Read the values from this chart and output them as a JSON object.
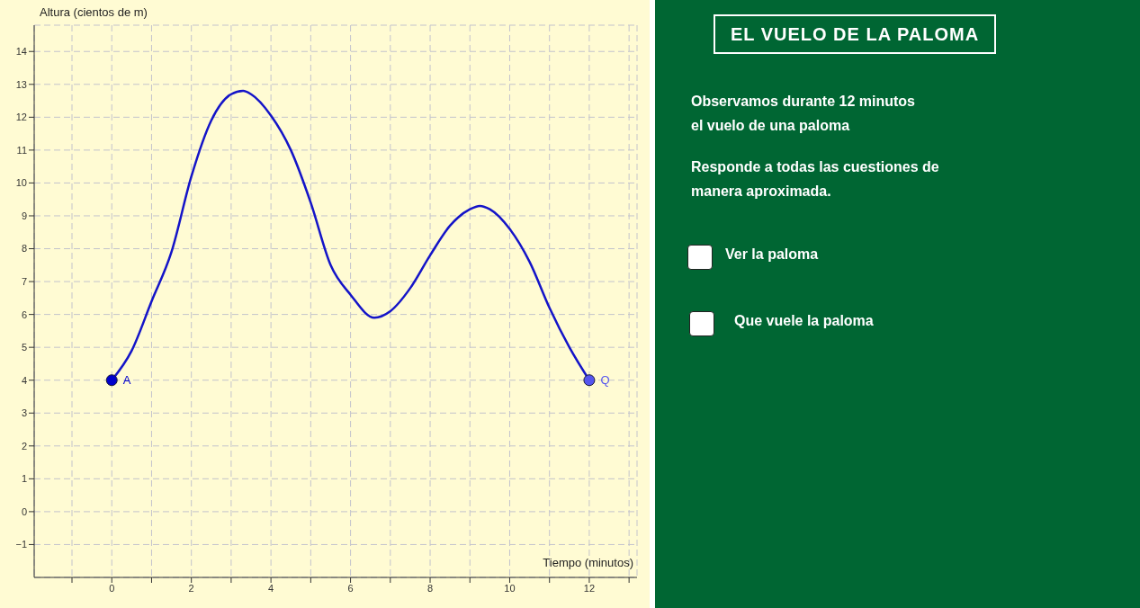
{
  "chart_data": {
    "type": "line",
    "title": "EL VUELO DE LA PALOMA",
    "xlabel": "Tiempo (minutos)",
    "ylabel": "Altura (cientos de m)",
    "annotations": [
      "Observamos durante 12 minutos",
      "el vuelo de una paloma",
      "Responde a todas las cuestiones de",
      "manera aproximada.",
      "Ver la paloma",
      "Que vuele la paloma"
    ],
    "series": [
      {
        "color": "#1414c8",
        "x": [
          0,
          0.5,
          1,
          1.5,
          2,
          2.5,
          3,
          3.3,
          3.5,
          4,
          4.5,
          5,
          5.5,
          6,
          6.6,
          7,
          7.5,
          8,
          8.5,
          9,
          9.25,
          9.5,
          10,
          10.5,
          11,
          11.5,
          12
        ],
        "values": [
          4,
          4.9,
          6.4,
          7.9,
          10.2,
          11.9,
          12.7,
          12.8,
          12.7,
          12.05,
          11,
          9.4,
          7.5,
          6.6,
          5.9,
          6.1,
          6.8,
          7.8,
          8.7,
          9.2,
          9.3,
          9.2,
          8.6,
          7.6,
          6.2,
          5,
          4
        ]
      },
      {
        "type": "scatter",
        "name": "A",
        "color": "#0000cc",
        "marker": "circle",
        "x": [
          0
        ],
        "values": [
          4
        ]
      },
      {
        "type": "scatter",
        "name": "Q",
        "color": "#5555ee",
        "marker": "circle",
        "x": [
          12
        ],
        "values": [
          4
        ]
      }
    ],
    "xlim": [
      -1.95,
      13.2
    ],
    "ylim": [
      -2,
      14.8
    ],
    "xticks": [
      {
        "value": -1,
        "label": null
      },
      0,
      {
        "value": 1,
        "label": null
      },
      2,
      {
        "value": 3,
        "label": null
      },
      4,
      {
        "value": 5,
        "label": null
      },
      6,
      {
        "value": 7,
        "label": null
      },
      8,
      {
        "value": 9,
        "label": null
      },
      10,
      {
        "value": 11,
        "label": null
      },
      12,
      {
        "value": 13,
        "label": null
      }
    ],
    "yticks": [
      {
        "value": -1,
        "label": "−1"
      },
      0,
      1,
      2,
      3,
      4,
      5,
      6,
      7,
      8,
      9,
      10,
      11,
      12,
      13,
      14
    ],
    "grid": true
  }
}
